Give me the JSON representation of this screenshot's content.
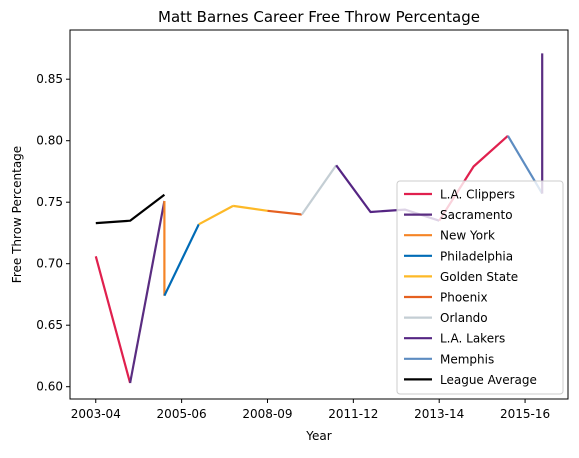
{
  "chart_data": {
    "type": "line",
    "title": "Matt Barnes Career Free Throw Percentage",
    "xlabel": "Year",
    "ylabel": "Free Throw Percentage",
    "x_tick_labels": [
      "2003-04",
      "2005-06",
      "2008-09",
      "2011-12",
      "2013-14",
      "2015-16"
    ],
    "x_tick_positions": [
      0,
      2.5,
      5,
      7.5,
      10,
      12.5
    ],
    "xlim": [
      -0.75,
      13.75
    ],
    "ylim": [
      0.59,
      0.89
    ],
    "y_ticks": [
      0.6,
      0.65,
      0.7,
      0.75,
      0.8,
      0.85
    ],
    "y_tick_labels": [
      "0.60",
      "0.65",
      "0.70",
      "0.75",
      "0.80",
      "0.85"
    ],
    "grid": false,
    "legend_position": "lower-right",
    "series": [
      {
        "name": "L.A. Clippers",
        "color": "#E0204E",
        "x": [
          0,
          1
        ],
        "y": [
          0.706,
          0.603
        ]
      },
      {
        "name": "Sacramento",
        "color": "#5A2D81",
        "x": [
          1,
          2
        ],
        "y": [
          0.603,
          0.751
        ]
      },
      {
        "name": "New York",
        "color": "#F58426",
        "x": [
          2,
          2
        ],
        "y": [
          0.751,
          0.674
        ]
      },
      {
        "name": "Philadelphia",
        "color": "#006BB6",
        "x": [
          2,
          3
        ],
        "y": [
          0.674,
          0.732
        ]
      },
      {
        "name": "Golden State",
        "color": "#FDB927",
        "x": [
          3,
          4
        ],
        "y": [
          0.732,
          0.747
        ]
      },
      {
        "name": "Phoenix",
        "color": "#E56020",
        "x": [
          5,
          6
        ],
        "y": [
          0.743,
          0.74
        ]
      },
      {
        "name": "Orlando",
        "color": "#C4CED4",
        "x": [
          6,
          7
        ],
        "y": [
          0.74,
          0.78
        ]
      },
      {
        "name": "L.A. Lakers",
        "color": "#552583",
        "x": [
          7,
          8,
          9,
          10
        ],
        "y": [
          0.78,
          0.742,
          0.744,
          0.735
        ]
      },
      {
        "name": "L.A. Clippers (2)",
        "legend": false,
        "color": "#E0204E",
        "x": [
          10,
          11,
          12
        ],
        "y": [
          0.735,
          0.779,
          0.804
        ]
      },
      {
        "name": "Memphis",
        "color": "#5D8CC1",
        "x": [
          12,
          13
        ],
        "y": [
          0.804,
          0.757
        ]
      },
      {
        "name": "Sacramento (2)",
        "legend": false,
        "color": "#5A2D81",
        "x": [
          13,
          13
        ],
        "y": [
          0.757,
          0.871
        ]
      },
      {
        "name": "League Average",
        "color": "#000000",
        "x": [
          0,
          1,
          2
        ],
        "y": [
          0.733,
          0.735,
          0.756
        ]
      }
    ],
    "extra_segments": [
      {
        "color": "#FDB927",
        "x": [
          4,
          5
        ],
        "y": [
          0.747,
          0.743
        ]
      }
    ]
  }
}
